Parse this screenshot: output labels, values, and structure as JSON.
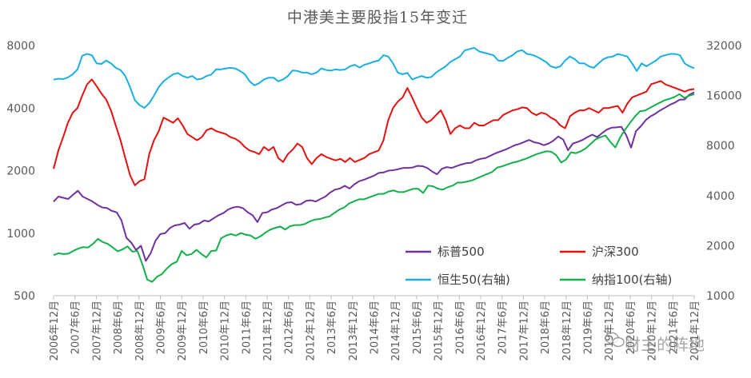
{
  "chart_data": {
    "type": "line",
    "title": "中港美主要股指15年变迁",
    "y_left": {
      "ticks": [
        500,
        1000,
        2000,
        4000,
        8000
      ],
      "labels": [
        "500",
        "1000",
        "2000",
        "4000",
        "8000"
      ],
      "scale": "log",
      "range": [
        500,
        8000
      ]
    },
    "y_right": {
      "ticks": [
        1000,
        2000,
        4000,
        8000,
        16000,
        32000
      ],
      "labels": [
        "1000",
        "2000",
        "4000",
        "8000",
        "16000",
        "32000"
      ],
      "scale": "log",
      "range": [
        1000,
        32000
      ]
    },
    "x_labels": [
      "2006年12月",
      "2007年6月",
      "2007年12月",
      "2008年6月",
      "2008年12月",
      "2009年6月",
      "2009年12月",
      "2010年6月",
      "2010年12月",
      "2011年6月",
      "2011年12月",
      "2012年6月",
      "2012年12月",
      "2013年6月",
      "2013年12月",
      "2014年6月",
      "2014年12月",
      "2015年6月",
      "2015年12月",
      "2016年6月",
      "2016年12月",
      "2017年6月",
      "2017年12月",
      "2018年6月",
      "2018年12月",
      "2019年6月",
      "2019年12月",
      "2020年6月",
      "2020年12月",
      "2021年6月",
      "2021年12月"
    ],
    "legend_position": "bottom-right, inside plot",
    "grid": false,
    "series": [
      {
        "name": "标普500",
        "axis": "left",
        "color": "#7030a0",
        "values": [
          1418,
          1500,
          1480,
          1460,
          1530,
          1600,
          1500,
          1460,
          1420,
          1370,
          1330,
          1320,
          1280,
          1260,
          1150,
          950,
          900,
          830,
          870,
          735,
          800,
          920,
          990,
          1000,
          1060,
          1090,
          1100,
          1120,
          1050,
          1100,
          1110,
          1150,
          1140,
          1180,
          1220,
          1250,
          1300,
          1330,
          1340,
          1320,
          1260,
          1220,
          1130,
          1250,
          1260,
          1300,
          1320,
          1360,
          1400,
          1410,
          1370,
          1380,
          1430,
          1440,
          1420,
          1460,
          1500,
          1570,
          1620,
          1640,
          1690,
          1640,
          1720,
          1780,
          1810,
          1850,
          1890,
          1950,
          1960,
          2000,
          2010,
          2030,
          2060,
          2060,
          2070,
          2110,
          2100,
          2060,
          1980,
          1920,
          2040,
          2080,
          2060,
          2100,
          2140,
          2170,
          2180,
          2240,
          2280,
          2300,
          2360,
          2420,
          2470,
          2520,
          2580,
          2650,
          2690,
          2750,
          2810,
          2740,
          2710,
          2650,
          2700,
          2790,
          2920,
          2820,
          2506,
          2700,
          2750,
          2810,
          2900,
          2980,
          2900,
          3030,
          3150,
          3220,
          3230,
          3250,
          2960,
          2580,
          3100,
          3270,
          3500,
          3650,
          3760,
          3900,
          4020,
          4150,
          4250,
          4390,
          4400,
          4640,
          4766
        ]
      },
      {
        "name": "沪深300",
        "axis": "left",
        "color": "#e51010",
        "values": [
          2041,
          2500,
          2900,
          3400,
          3800,
          4000,
          4600,
          5200,
          5500,
          5100,
          4700,
          4400,
          3900,
          3300,
          2800,
          2300,
          1900,
          1700,
          1780,
          1817,
          2400,
          2800,
          3100,
          3600,
          3500,
          3400,
          3575,
          3300,
          3000,
          2900,
          2800,
          2900,
          3130,
          3200,
          3100,
          3050,
          3000,
          2900,
          2850,
          2750,
          2600,
          2500,
          2460,
          2400,
          2600,
          2500,
          2600,
          2300,
          2200,
          2400,
          2522,
          2700,
          2600,
          2300,
          2150,
          2300,
          2400,
          2330,
          2280,
          2240,
          2280,
          2200,
          2300,
          2200,
          2250,
          2300,
          2400,
          2450,
          2500,
          2800,
          3500,
          4000,
          4300,
          4500,
          5000,
          4500,
          4000,
          3600,
          3400,
          3500,
          3700,
          3900,
          3500,
          3000,
          3200,
          3300,
          3200,
          3200,
          3400,
          3300,
          3300,
          3400,
          3500,
          3500,
          3700,
          3800,
          3900,
          3950,
          4030,
          4000,
          3800,
          3700,
          3800,
          3750,
          3600,
          3500,
          3300,
          3200,
          3650,
          3800,
          3900,
          3900,
          4000,
          3900,
          3800,
          4000,
          4000,
          4050,
          4096,
          3800,
          4200,
          4500,
          4600,
          4700,
          4800,
          5211,
          5300,
          5400,
          5200,
          5100,
          5000,
          4900,
          4800,
          4900,
          4940
        ]
      },
      {
        "name": "恒生50(右轴)",
        "axis": "right",
        "color": "#19afe4",
        "values": [
          19964,
          20200,
          20100,
          20600,
          21500,
          23000,
          27800,
          28500,
          28000,
          25000,
          24800,
          26000,
          25000,
          23500,
          22800,
          21000,
          18000,
          15000,
          14000,
          13500,
          14387,
          16000,
          18000,
          19500,
          20500,
          21500,
          21873,
          21000,
          20500,
          21000,
          20000,
          20200,
          21000,
          21400,
          23035,
          23000,
          23300,
          23500,
          23300,
          22500,
          21500,
          19500,
          18434,
          19000,
          20000,
          20500,
          20500,
          19500,
          20000,
          21000,
          22657,
          22500,
          22000,
          22000,
          21500,
          22000,
          23306,
          22800,
          22600,
          23000,
          22800,
          23000,
          24000,
          24500,
          23605,
          24500,
          25000,
          25600,
          26000,
          28000,
          27500,
          25000,
          22000,
          21500,
          21914,
          20000,
          20500,
          21000,
          20500,
          20700,
          22001,
          23000,
          24000,
          25500,
          26500,
          27500,
          29919,
          30500,
          31000,
          29500,
          29000,
          28500,
          28000,
          26000,
          25845,
          27000,
          28000,
          29500,
          30000,
          28500,
          28189,
          27500,
          26500,
          25500,
          24000,
          23500,
          24000,
          26000,
          27500,
          26500,
          25000,
          25000,
          24000,
          23500,
          25000,
          26500,
          27231,
          27500,
          28500,
          28000,
          27500,
          25000,
          22500,
          25000,
          24000,
          25000,
          26000,
          27500,
          28000,
          28500,
          28500,
          28000,
          25000,
          24000,
          23398
        ]
      },
      {
        "name": "纳指100(右轴)",
        "axis": "right",
        "color": "#12b048",
        "values": [
          1756,
          1800,
          1780,
          1790,
          1860,
          1920,
          1960,
          1950,
          2050,
          2200,
          2100,
          2050,
          1950,
          1850,
          1900,
          1980,
          1840,
          1860,
          1550,
          1250,
          1211,
          1300,
          1350,
          1460,
          1550,
          1600,
          1860,
          1750,
          1780,
          1890,
          1780,
          1700,
          1860,
          1870,
          2217,
          2300,
          2350,
          2300,
          2380,
          2330,
          2300,
          2200,
          2278,
          2400,
          2500,
          2560,
          2610,
          2500,
          2620,
          2660,
          2660,
          2700,
          2800,
          2870,
          2890,
          2950,
          3000,
          3150,
          3300,
          3400,
          3592,
          3700,
          3800,
          3800,
          3900,
          4000,
          4100,
          4100,
          4236,
          4300,
          4200,
          4200,
          4300,
          4400,
          4400,
          4150,
          4593,
          4550,
          4400,
          4350,
          4500,
          4600,
          4800,
          4800,
          4864,
          4950,
          5100,
          5250,
          5400,
          5550,
          5900,
          6000,
          6150,
          6300,
          6396,
          6550,
          6700,
          6900,
          7100,
          7250,
          7400,
          7350,
          7000,
          6330,
          6600,
          7300,
          7200,
          7400,
          7700,
          8200,
          8733,
          9000,
          9200,
          8400,
          7800,
          9000,
          10000,
          11000,
          12000,
          12888,
          13000,
          13500,
          14000,
          14500,
          15000,
          15300,
          15700,
          16320,
          15500,
          16000,
          16300
        ]
      }
    ]
  },
  "watermark": {
    "text": "财主的阵地",
    "icon": "wechat-icon"
  }
}
